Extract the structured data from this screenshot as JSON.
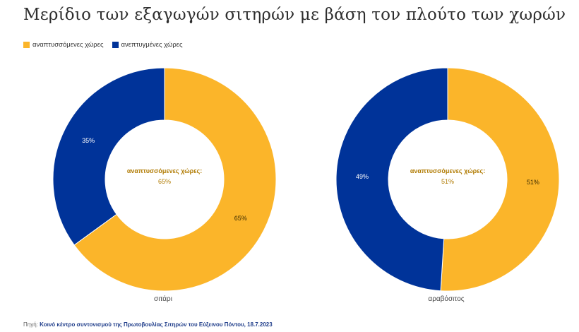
{
  "title": "Μερίδιο των εξαγωγών σιτηρών με βάση τον πλούτο των χωρών",
  "legend": [
    {
      "label": "αναπτυσσόμενες χώρες",
      "color": "#FBB52A"
    },
    {
      "label": "ανεπτυγμένες χώρες",
      "color": "#003399"
    }
  ],
  "footer": {
    "prefix": "Πηγή:",
    "source": "Κοινό κέντρο συντονισμού της Πρωτοβουλίας Σιτηρών του Εύξεινου Πόντου, 18.7.2023"
  },
  "chart_data": [
    {
      "type": "pie",
      "variant": "donut",
      "name": "σιτάρι",
      "categories": [
        "αναπτυσσόμενες χώρες",
        "ανεπτυγμένες χώρες"
      ],
      "values": [
        65,
        35
      ],
      "value_labels": [
        "65%",
        "35%"
      ],
      "colors": [
        "#FBB52A",
        "#003399"
      ],
      "center_label": "αναπτυσσόμενες χώρες:",
      "center_value": "65%"
    },
    {
      "type": "pie",
      "variant": "donut",
      "name": "αραβόσιτος",
      "categories": [
        "αναπτυσσόμενες χώρες",
        "ανεπτυγμένες χώρες"
      ],
      "values": [
        51,
        49
      ],
      "value_labels": [
        "51%",
        "49%"
      ],
      "colors": [
        "#FBB52A",
        "#003399"
      ],
      "center_label": "αναπτυσσόμενες χώρες:",
      "center_value": "51%"
    }
  ]
}
